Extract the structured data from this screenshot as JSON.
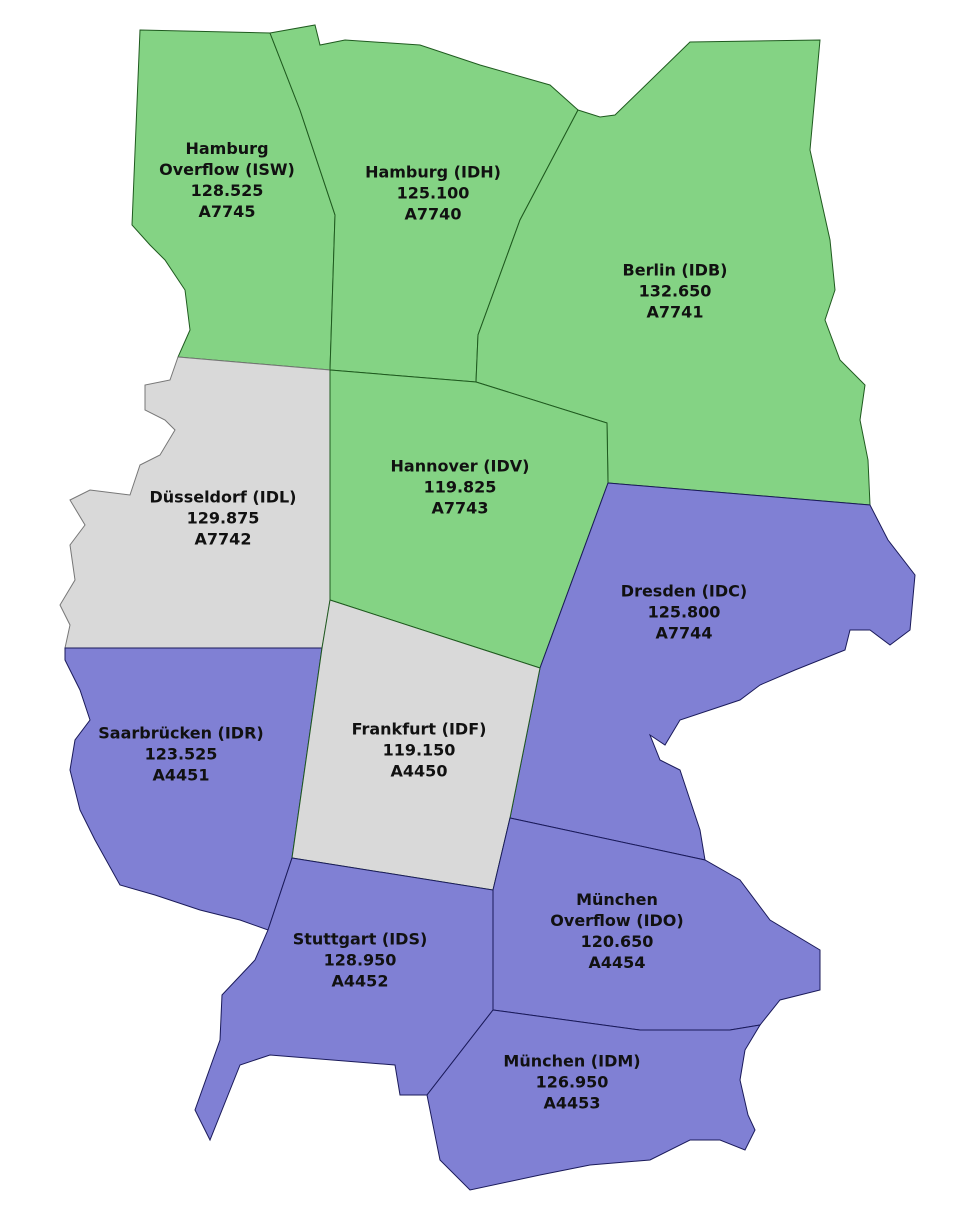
{
  "regions": [
    {
      "name": "Hamburg Overflow (ISW)",
      "frequency": "128.525",
      "code": "A7745",
      "color": "#84d384"
    },
    {
      "name": "Hamburg (IDH)",
      "frequency": "125.100",
      "code": "A7740",
      "color": "#84d384"
    },
    {
      "name": "Berlin (IDB)",
      "frequency": "132.650",
      "code": "A7741",
      "color": "#84d384"
    },
    {
      "name": "Düsseldorf (IDL)",
      "frequency": "129.875",
      "code": "A7742",
      "color": "#d9d9d9"
    },
    {
      "name": "Hannover (IDV)",
      "frequency": "119.825",
      "code": "A7743",
      "color": "#84d384"
    },
    {
      "name": "Dresden (IDC)",
      "frequency": "125.800",
      "code": "A7744",
      "color": "#8080d4"
    },
    {
      "name": "Saarbrücken (IDR)",
      "frequency": "123.525",
      "code": "A4451",
      "color": "#8080d4"
    },
    {
      "name": "Frankfurt (IDF)",
      "frequency": "119.150",
      "code": "A4450",
      "color": "#d9d9d9"
    },
    {
      "name": "Stuttgart (IDS)",
      "frequency": "128.950",
      "code": "A4452",
      "color": "#8080d4"
    },
    {
      "name": "München Overflow (IDO)",
      "frequency": "120.650",
      "code": "A4454",
      "color": "#8080d4"
    },
    {
      "name": "München (IDM)",
      "frequency": "126.950",
      "code": "A4453",
      "color": "#8080d4"
    }
  ]
}
